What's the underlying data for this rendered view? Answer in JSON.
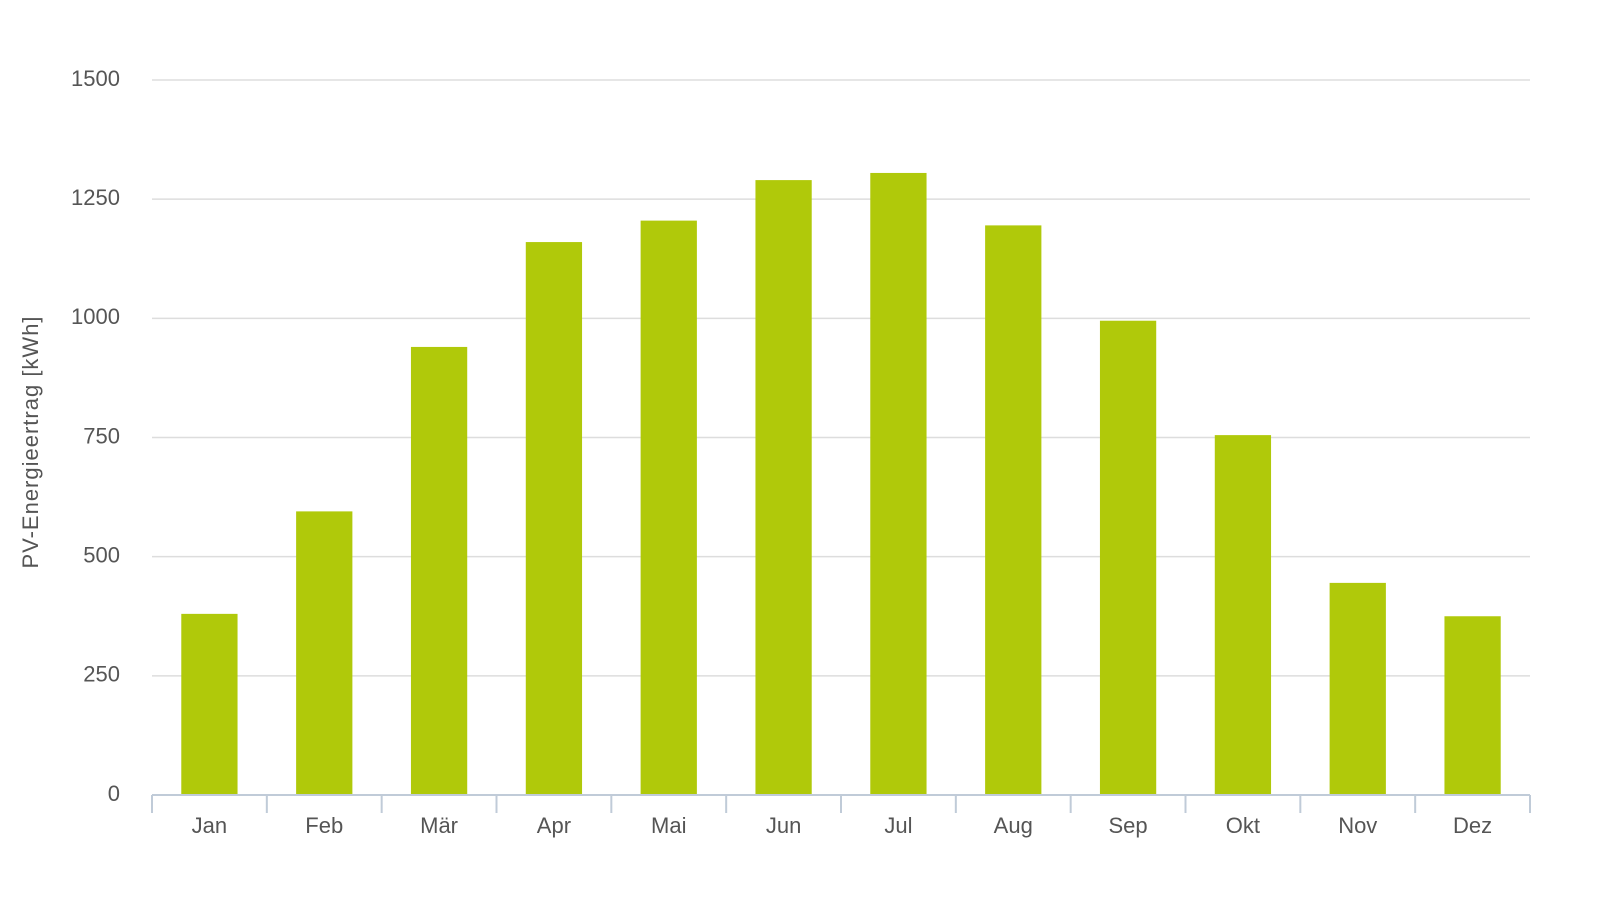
{
  "chart_data": {
    "type": "bar",
    "y_label": "PV-Energieertrag [kWh]",
    "categories": [
      "Jan",
      "Feb",
      "Mär",
      "Apr",
      "Mai",
      "Jun",
      "Jul",
      "Aug",
      "Sep",
      "Okt",
      "Nov",
      "Dez"
    ],
    "values": [
      380,
      595,
      940,
      1160,
      1205,
      1290,
      1305,
      1195,
      995,
      755,
      445,
      375
    ],
    "color": "#b0c90a",
    "ylim": [
      0,
      1500
    ],
    "yticks": [
      0,
      250,
      500,
      750,
      1000,
      1250,
      1500
    ],
    "grid": true
  }
}
